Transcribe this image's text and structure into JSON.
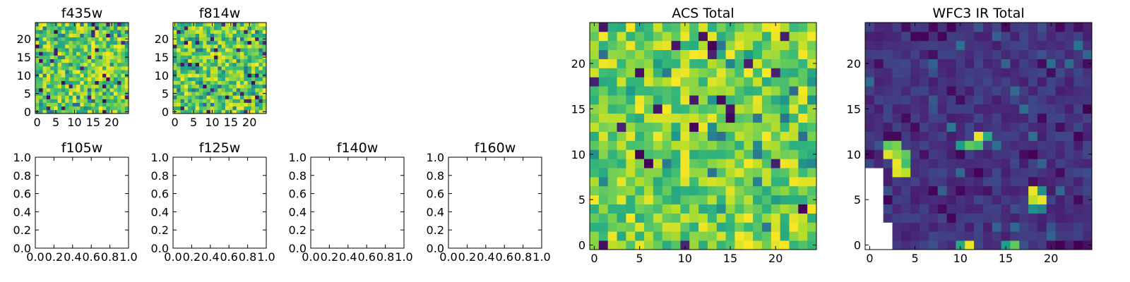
{
  "colors": {
    "background": "#ffffff",
    "axes_edge": "#000000",
    "colormap": "viridis",
    "viridis_stops": [
      "#440154",
      "#482878",
      "#3e4989",
      "#31688e",
      "#26828e",
      "#1f9e89",
      "#35b779",
      "#6ece58",
      "#b5de2b",
      "#fde725"
    ]
  },
  "chart_data": [
    {
      "type": "heatmap",
      "title": "f435w",
      "colormap": "viridis",
      "shape": [
        25,
        25
      ],
      "xlim": [
        -0.5,
        24.5
      ],
      "ylim": [
        -0.5,
        24.5
      ],
      "xticks": [
        0,
        5,
        10,
        15,
        20
      ],
      "yticks": [
        0,
        5,
        10,
        15,
        20
      ],
      "content_note": "dense random-looking 25x25 noise, mostly green/yellow-green with scattered dark purple pixels"
    },
    {
      "type": "heatmap",
      "title": "f814w",
      "colormap": "viridis",
      "shape": [
        25,
        25
      ],
      "xlim": [
        -0.5,
        24.5
      ],
      "ylim": [
        -0.5,
        24.5
      ],
      "xticks": [
        0,
        5,
        10,
        15,
        20
      ],
      "yticks": [
        0,
        5,
        10,
        15,
        20
      ],
      "content_note": "dense random-looking 25x25 noise, mostly green/yellow-green with scattered dark purple pixels"
    },
    {
      "type": "line",
      "title": "f105w",
      "series": [],
      "xlim": [
        0,
        1
      ],
      "ylim": [
        0,
        1
      ],
      "xticks": [
        "0.0",
        "0.2",
        "0.4",
        "0.6",
        "0.8",
        "1.0"
      ],
      "yticks": [
        "0.0",
        "0.2",
        "0.4",
        "0.6",
        "0.8",
        "1.0"
      ]
    },
    {
      "type": "line",
      "title": "f125w",
      "series": [],
      "xlim": [
        0,
        1
      ],
      "ylim": [
        0,
        1
      ],
      "xticks": [
        "0.0",
        "0.2",
        "0.4",
        "0.6",
        "0.8",
        "1.0"
      ],
      "yticks": [
        "0.0",
        "0.2",
        "0.4",
        "0.6",
        "0.8",
        "1.0"
      ]
    },
    {
      "type": "line",
      "title": "f140w",
      "series": [],
      "xlim": [
        0,
        1
      ],
      "ylim": [
        0,
        1
      ],
      "xticks": [
        "0.0",
        "0.2",
        "0.4",
        "0.6",
        "0.8",
        "1.0"
      ],
      "yticks": [
        "0.0",
        "0.2",
        "0.4",
        "0.6",
        "0.8",
        "1.0"
      ]
    },
    {
      "type": "line",
      "title": "f160w",
      "series": [],
      "xlim": [
        0,
        1
      ],
      "ylim": [
        0,
        1
      ],
      "xticks": [
        "0.0",
        "0.2",
        "0.4",
        "0.6",
        "0.8",
        "1.0"
      ],
      "yticks": [
        "0.0",
        "0.2",
        "0.4",
        "0.6",
        "0.8",
        "1.0"
      ]
    },
    {
      "type": "heatmap",
      "title": "ACS Total",
      "colormap": "viridis",
      "shape": [
        25,
        25
      ],
      "xlim": [
        -0.5,
        24.5
      ],
      "ylim": [
        -0.5,
        24.5
      ],
      "xticks": [
        0,
        5,
        10,
        15,
        20
      ],
      "yticks": [
        0,
        5,
        10,
        15,
        20
      ],
      "content_note": "25x25 noise, predominantly bright green to yellow, a few dark purple pixels"
    },
    {
      "type": "heatmap",
      "title": "WFC3 IR Total",
      "colormap": "viridis",
      "shape": [
        25,
        25
      ],
      "xlim": [
        -0.5,
        24.5
      ],
      "ylim": [
        -0.5,
        24.5
      ],
      "xticks": [
        0,
        5,
        10,
        15,
        20
      ],
      "yticks": [
        0,
        5,
        10,
        15,
        20
      ],
      "content_note": "mostly dark purple/indigo with a few bright yellow-green blobs",
      "bright_pixels": [
        {
          "x": 2,
          "y": 10,
          "level": 0.95
        },
        {
          "x": 3,
          "y": 11,
          "level": 0.8
        },
        {
          "x": 2,
          "y": 11,
          "level": 0.75
        },
        {
          "x": 3,
          "y": 10,
          "level": 0.85
        },
        {
          "x": 3,
          "y": 9,
          "level": 0.97
        },
        {
          "x": 3,
          "y": 8,
          "level": 0.95
        },
        {
          "x": 4,
          "y": 8,
          "level": 0.9
        },
        {
          "x": 4,
          "y": 9,
          "level": 0.7
        },
        {
          "x": 4,
          "y": 10,
          "level": 0.75
        },
        {
          "x": 11,
          "y": 11,
          "level": 0.75
        },
        {
          "x": 12,
          "y": 12,
          "level": 0.97
        },
        {
          "x": 12,
          "y": 11,
          "level": 0.7
        },
        {
          "x": 13,
          "y": 12,
          "level": 0.6
        },
        {
          "x": 10,
          "y": 11,
          "level": 0.55
        },
        {
          "x": 18,
          "y": 6,
          "level": 0.97
        },
        {
          "x": 18,
          "y": 5,
          "level": 0.9
        },
        {
          "x": 19,
          "y": 5,
          "level": 0.97
        },
        {
          "x": 19,
          "y": 6,
          "level": 0.5
        },
        {
          "x": 18,
          "y": 4,
          "level": 0.5
        },
        {
          "x": 19,
          "y": 4,
          "level": 0.45
        },
        {
          "x": 10,
          "y": 0,
          "level": 0.6
        },
        {
          "x": 11,
          "y": 0,
          "level": 0.97
        },
        {
          "x": 15,
          "y": 0,
          "level": 0.55
        },
        {
          "x": 16,
          "y": 0,
          "level": 0.75
        },
        {
          "x": 9,
          "y": 13,
          "level": 0.4
        },
        {
          "x": 16,
          "y": 17,
          "level": 0.35
        },
        {
          "x": 20,
          "y": 20,
          "level": 0.35
        }
      ],
      "masked_region_note": "white (no data) pixels at lower-left around x=0..2, y=0..8"
    }
  ]
}
